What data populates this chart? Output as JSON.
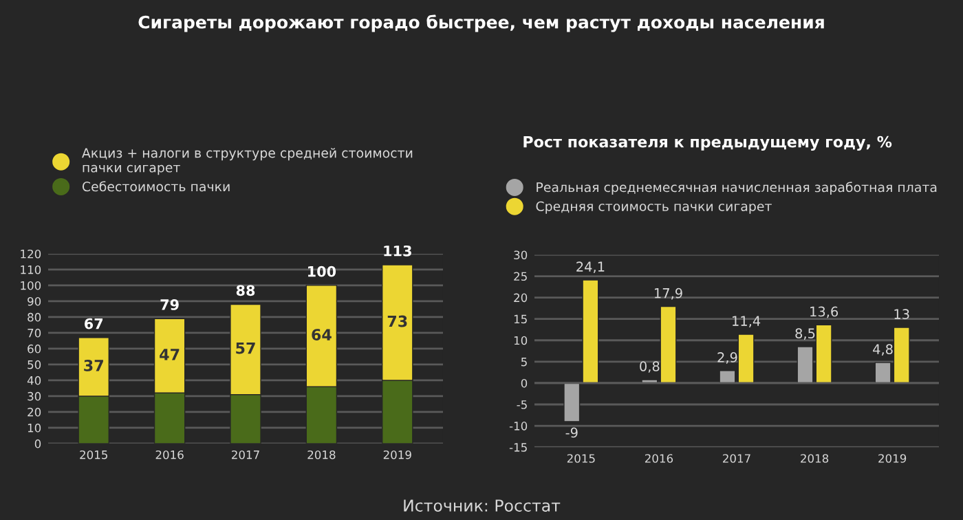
{
  "chart_data": [
    {
      "type": "bar",
      "title": "Сигареты дорожают горадо быстрее, чем растут доходы населения",
      "categories": [
        "2015",
        "2016",
        "2017",
        "2018",
        "2019"
      ],
      "stacked": true,
      "series": [
        {
          "name": "Себестоимость пачки",
          "color": "#4a6b1a",
          "values": [
            30,
            32,
            31,
            36,
            40
          ]
        },
        {
          "name": "Акциз + налоги в структуре средней стоимости\nпачки сигарет",
          "color": "#ecd633",
          "values": [
            37,
            47,
            57,
            64,
            73
          ],
          "value_labels": [
            "37",
            "47",
            "57",
            "64",
            "73"
          ]
        }
      ],
      "totals": [
        "67",
        "79",
        "88",
        "100",
        "113"
      ],
      "ylim": [
        0,
        120
      ],
      "yticks": [
        0,
        10,
        20,
        30,
        40,
        50,
        60,
        70,
        80,
        90,
        100,
        110,
        120
      ],
      "grid": "y",
      "legend": "top left",
      "annotations": [
        "Источник: Росстат"
      ]
    },
    {
      "type": "bar",
      "title": "Рост показателя к предыдущему году, %",
      "categories": [
        "2015",
        "2016",
        "2017",
        "2018",
        "2019"
      ],
      "series": [
        {
          "name": "Реальная среднемесячная начисленная заработная плата",
          "color": "#a5a5a5",
          "values": [
            -9,
            0.8,
            2.9,
            8.5,
            4.8
          ],
          "value_labels": [
            "-9",
            "0,8",
            "2,9",
            "8,5",
            "4,8"
          ]
        },
        {
          "name": "Средняя стоимость пачки сигарет",
          "color": "#ecd633",
          "values": [
            24.1,
            17.9,
            11.4,
            13.6,
            13
          ],
          "value_labels": [
            "24,1",
            "17,9",
            "11,4",
            "13,6",
            "13"
          ]
        }
      ],
      "ylim": [
        -15,
        30
      ],
      "yticks": [
        -15,
        -10,
        -5,
        0,
        5,
        10,
        15,
        20,
        25,
        30
      ],
      "grid": "y",
      "legend": "top left"
    }
  ]
}
